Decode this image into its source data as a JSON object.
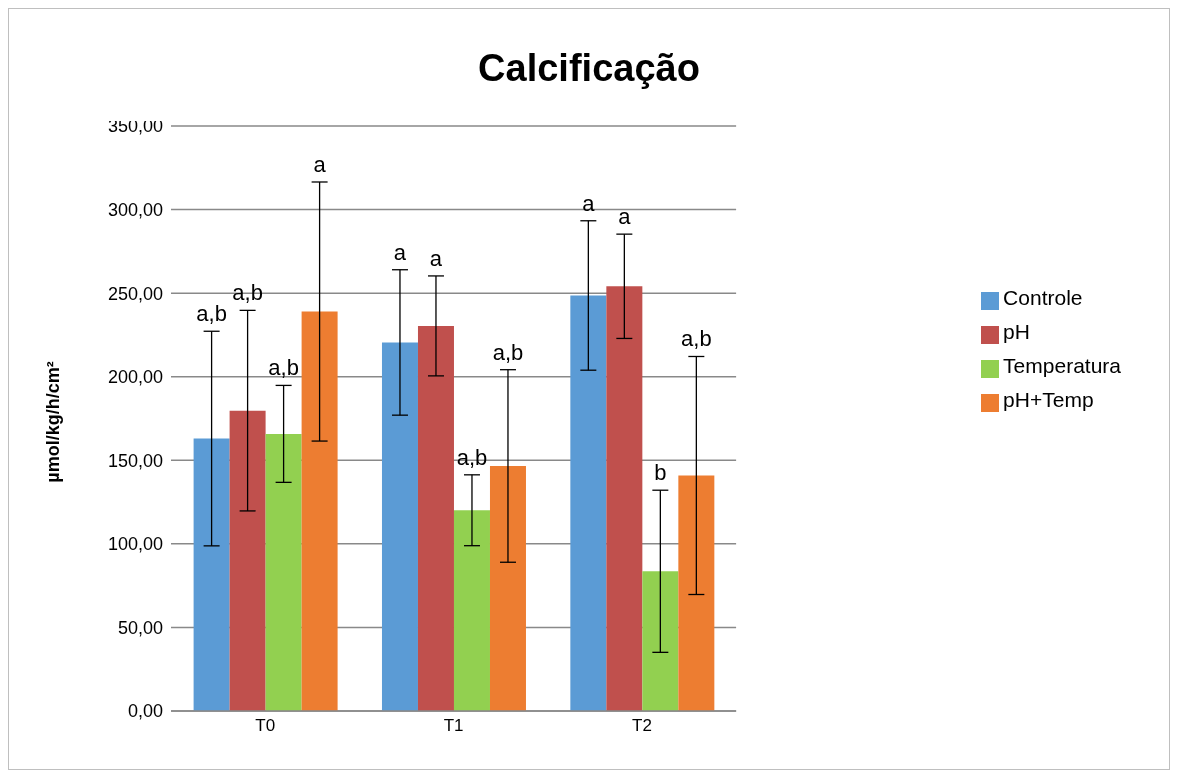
{
  "chart_data": {
    "type": "bar",
    "title": "Calcificação",
    "ylabel": "µmol/kg/h/cm²",
    "categories": [
      "T0",
      "T1",
      "T2"
    ],
    "series": [
      {
        "name": "Controle",
        "color": "#5b9bd5",
        "values": [
          163,
          220.5,
          248.6
        ],
        "errors": [
          64.2,
          43.5,
          44.7
        ]
      },
      {
        "name": "pH",
        "color": "#c0504d",
        "values": [
          179.7,
          230.4,
          254.1
        ],
        "errors": [
          60,
          29.9,
          31.2
        ]
      },
      {
        "name": "Temperatura",
        "color": "#92d050",
        "values": [
          165.8,
          120.1,
          83.6
        ],
        "errors": [
          29,
          21.2,
          48.5
        ]
      },
      {
        "name": "pH+Temp",
        "color": "#ed7d31",
        "values": [
          239,
          146.6,
          140.9
        ],
        "errors": [
          77.5,
          57.6,
          71.2
        ]
      }
    ],
    "annotations": [
      "a,b",
      "a,b",
      "a,b",
      "a",
      "a",
      "a",
      "a,b",
      "a,b",
      "a",
      "a",
      "b",
      "a,b"
    ],
    "ylim": [
      0,
      350
    ],
    "yticks": [
      {
        "value": 0,
        "label": "0,00"
      },
      {
        "value": 50,
        "label": "50,00"
      },
      {
        "value": 100,
        "label": "100,00"
      },
      {
        "value": 150,
        "label": "150,00"
      },
      {
        "value": 200,
        "label": "200,00"
      },
      {
        "value": 250,
        "label": "250,00"
      },
      {
        "value": 300,
        "label": "300,00"
      },
      {
        "value": 350,
        "label": "350,00"
      }
    ],
    "grid": "y",
    "legend": "right"
  }
}
